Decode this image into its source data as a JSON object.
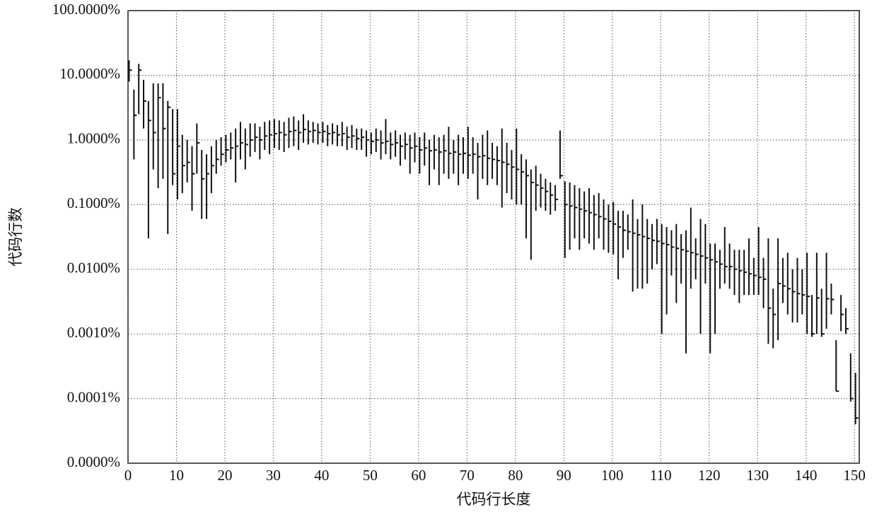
{
  "chart_data": {
    "type": "range",
    "xlabel": "代码行长度",
    "ylabel": "代码行数",
    "color": "#111111",
    "log_y": true,
    "grid": true,
    "xlim": [
      0,
      151
    ],
    "xticks": [
      0,
      10,
      20,
      30,
      40,
      50,
      60,
      70,
      80,
      90,
      100,
      110,
      120,
      130,
      140,
      150
    ],
    "ylim": [
      1e-05,
      100
    ],
    "yticks": [
      {
        "value": 100,
        "label": "100.0000%"
      },
      {
        "value": 10,
        "label": "10.0000%"
      },
      {
        "value": 1,
        "label": "1.0000%"
      },
      {
        "value": 0.1,
        "label": "0.1000%"
      },
      {
        "value": 0.01,
        "label": "0.0100%"
      },
      {
        "value": 0.001,
        "label": "0.0010%"
      },
      {
        "value": 0.0001,
        "label": "0.0001%"
      },
      {
        "value": 1e-05,
        "label": "0.0000%"
      }
    ],
    "x": [
      0,
      1,
      2,
      3,
      4,
      5,
      6,
      7,
      8,
      9,
      10,
      11,
      12,
      13,
      14,
      15,
      16,
      17,
      18,
      19,
      20,
      21,
      22,
      23,
      24,
      25,
      26,
      27,
      28,
      29,
      30,
      31,
      32,
      33,
      34,
      35,
      36,
      37,
      38,
      39,
      40,
      41,
      42,
      43,
      44,
      45,
      46,
      47,
      48,
      49,
      50,
      51,
      52,
      53,
      54,
      55,
      56,
      57,
      58,
      59,
      60,
      61,
      62,
      63,
      64,
      65,
      66,
      67,
      68,
      69,
      70,
      71,
      72,
      73,
      74,
      75,
      76,
      77,
      78,
      79,
      80,
      81,
      82,
      83,
      84,
      85,
      86,
      87,
      88,
      89,
      90,
      91,
      92,
      93,
      94,
      95,
      96,
      97,
      98,
      99,
      100,
      101,
      102,
      103,
      104,
      105,
      106,
      107,
      108,
      109,
      110,
      111,
      112,
      113,
      114,
      115,
      116,
      117,
      118,
      119,
      120,
      121,
      122,
      123,
      124,
      125,
      126,
      127,
      128,
      129,
      130,
      131,
      132,
      133,
      134,
      135,
      136,
      137,
      138,
      139,
      140,
      141,
      142,
      143,
      144,
      145,
      146,
      147,
      148,
      149,
      150
    ],
    "high": [
      17,
      6,
      15,
      8.5,
      4,
      7.5,
      7.5,
      7.5,
      4,
      3,
      3,
      1.2,
      1.0,
      0.8,
      1.8,
      0.7,
      0.6,
      0.8,
      1.0,
      1.1,
      1.2,
      1.3,
      1.5,
      1.9,
      1.5,
      1.8,
      1.8,
      1.6,
      1.9,
      2.0,
      2.1,
      2.0,
      1.9,
      2.2,
      2.3,
      2.0,
      2.5,
      2.0,
      1.9,
      1.8,
      1.9,
      1.7,
      1.8,
      1.7,
      1.9,
      1.6,
      1.7,
      1.5,
      1.5,
      1.4,
      1.3,
      1.5,
      1.4,
      2.1,
      1.3,
      1.4,
      1.2,
      1.3,
      1.2,
      1.3,
      1.1,
      1.3,
      1.0,
      1.2,
      1.1,
      1.2,
      1.6,
      1.0,
      1.2,
      1.1,
      1.6,
      1.1,
      0.9,
      1.2,
      1.4,
      0.9,
      0.8,
      1.5,
      0.9,
      0.7,
      1.5,
      0.6,
      0.5,
      0.35,
      0.4,
      0.3,
      0.25,
      0.22,
      0.2,
      1.4,
      0.23,
      0.22,
      0.2,
      0.18,
      0.16,
      0.18,
      0.14,
      0.15,
      0.12,
      0.1,
      0.11,
      0.08,
      0.08,
      0.07,
      0.12,
      0.06,
      0.1,
      0.06,
      0.05,
      0.06,
      0.05,
      0.045,
      0.04,
      0.05,
      0.035,
      0.04,
      0.09,
      0.03,
      0.06,
      0.05,
      0.025,
      0.025,
      0.02,
      0.045,
      0.025,
      0.02,
      0.02,
      0.02,
      0.03,
      0.015,
      0.045,
      0.015,
      0.03,
      0.005,
      0.03,
      0.015,
      0.018,
      0.01,
      0.015,
      0.01,
      0.018,
      0.004,
      0.018,
      0.005,
      0.018,
      0.006,
      0.0008,
      0.004,
      0.0025,
      0.0005,
      0.00025
    ],
    "low": [
      8,
      0.5,
      2.5,
      1.5,
      0.03,
      0.35,
      0.18,
      0.25,
      0.035,
      0.2,
      0.12,
      0.15,
      0.22,
      0.08,
      0.3,
      0.06,
      0.06,
      0.15,
      0.3,
      0.4,
      0.45,
      0.5,
      0.22,
      0.5,
      0.35,
      0.55,
      0.65,
      0.5,
      0.7,
      0.6,
      0.75,
      0.7,
      0.65,
      0.75,
      0.8,
      0.7,
      0.9,
      0.85,
      0.9,
      0.85,
      0.9,
      0.8,
      0.85,
      0.8,
      0.8,
      0.7,
      0.75,
      0.7,
      0.7,
      0.55,
      0.6,
      0.65,
      0.5,
      0.6,
      0.5,
      0.55,
      0.4,
      0.5,
      0.3,
      0.45,
      0.3,
      0.4,
      0.2,
      0.35,
      0.2,
      0.3,
      0.25,
      0.3,
      0.2,
      0.3,
      0.25,
      0.3,
      0.12,
      0.25,
      0.2,
      0.25,
      0.2,
      0.09,
      0.15,
      0.12,
      0.1,
      0.1,
      0.03,
      0.014,
      0.08,
      0.09,
      0.08,
      0.07,
      0.08,
      0.25,
      0.015,
      0.02,
      0.03,
      0.02,
      0.03,
      0.025,
      0.02,
      0.03,
      0.02,
      0.018,
      0.017,
      0.007,
      0.015,
      0.02,
      0.0045,
      0.005,
      0.005,
      0.006,
      0.01,
      0.012,
      0.001,
      0.002,
      0.008,
      0.003,
      0.006,
      0.0005,
      0.005,
      0.007,
      0.001,
      0.006,
      0.0005,
      0.001,
      0.005,
      0.006,
      0.005,
      0.004,
      0.003,
      0.004,
      0.004,
      0.004,
      0.004,
      0.0025,
      0.0007,
      0.0006,
      0.0008,
      0.003,
      0.002,
      0.0015,
      0.0015,
      0.002,
      0.001,
      0.0009,
      0.001,
      0.0009,
      0.0012,
      0.002,
      0.00013,
      0.0011,
      0.001,
      9e-05,
      4e-05
    ],
    "mid": [
      12,
      2.4,
      12,
      4,
      2,
      1.3,
      4.5,
      1.5,
      3.2,
      0.3,
      0.8,
      0.4,
      0.45,
      0.3,
      0.9,
      0.25,
      0.3,
      0.4,
      0.5,
      0.6,
      0.7,
      0.75,
      0.8,
      0.9,
      0.85,
      1.0,
      1.1,
      1.0,
      1.15,
      1.2,
      1.25,
      1.3,
      1.2,
      1.35,
      1.4,
      1.3,
      1.45,
      1.35,
      1.4,
      1.3,
      1.35,
      1.25,
      1.3,
      1.2,
      1.25,
      1.1,
      1.15,
      1.05,
      1.1,
      1.0,
      0.95,
      1.0,
      0.9,
      0.95,
      0.85,
      0.9,
      0.8,
      0.85,
      0.75,
      0.8,
      0.7,
      0.75,
      0.68,
      0.7,
      0.65,
      0.68,
      0.62,
      0.65,
      0.6,
      0.62,
      0.58,
      0.6,
      0.55,
      0.57,
      0.52,
      0.5,
      0.48,
      0.45,
      0.42,
      0.38,
      0.35,
      0.32,
      0.28,
      0.22,
      0.2,
      0.18,
      0.16,
      0.14,
      0.12,
      0.28,
      0.1,
      0.095,
      0.09,
      0.085,
      0.08,
      0.075,
      0.07,
      0.065,
      0.06,
      0.055,
      0.05,
      0.045,
      0.04,
      0.038,
      0.036,
      0.034,
      0.032,
      0.03,
      0.028,
      0.027,
      0.025,
      0.024,
      0.022,
      0.021,
      0.02,
      0.019,
      0.018,
      0.017,
      0.016,
      0.015,
      0.014,
      0.013,
      0.012,
      0.011,
      0.011,
      0.01,
      0.0095,
      0.009,
      0.0085,
      0.008,
      0.0075,
      0.007,
      0.0025,
      0.002,
      0.006,
      0.0055,
      0.005,
      0.0045,
      0.0042,
      0.004,
      0.0038,
      0.001,
      0.0036,
      0.001,
      0.0035,
      0.0034,
      0.00013,
      0.002,
      0.0012,
      0.0001,
      5e-05
    ]
  }
}
